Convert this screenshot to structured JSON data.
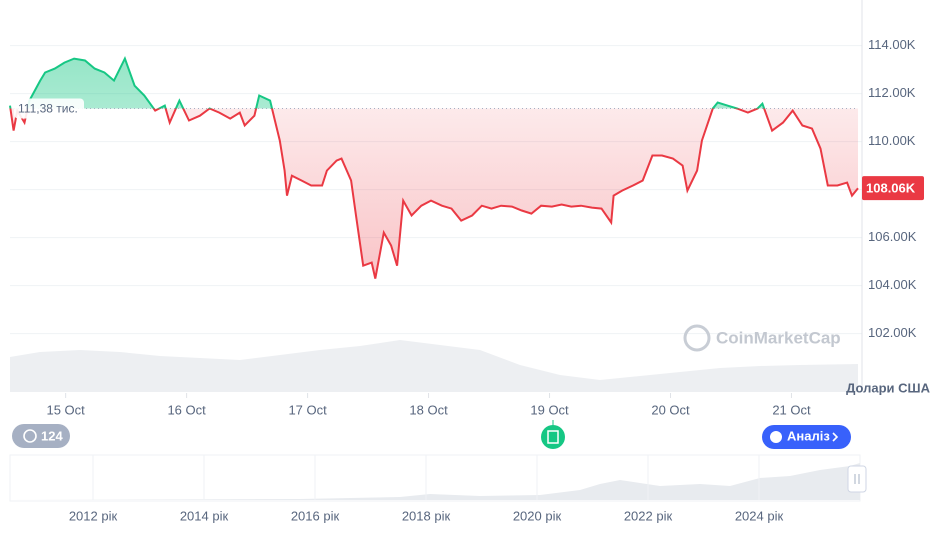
{
  "chart_data": {
    "type": "line",
    "x": [
      14.54,
      14.57,
      14.6,
      14.66,
      14.7,
      14.79,
      14.83,
      14.91,
      14.99,
      15.07,
      15.16,
      15.24,
      15.32,
      15.4,
      15.49,
      15.57,
      15.65,
      15.74,
      15.82,
      15.86,
      15.94,
      16.02,
      16.11,
      16.19,
      16.27,
      16.36,
      16.44,
      16.48,
      16.56,
      16.6,
      16.69,
      16.73,
      16.77,
      16.81,
      16.83,
      16.87,
      16.95,
      17.03,
      17.12,
      17.16,
      17.24,
      17.28,
      17.36,
      17.4,
      17.46,
      17.53,
      17.56,
      17.63,
      17.69,
      17.74,
      17.79,
      17.86,
      17.94,
      18.02,
      18.11,
      18.19,
      18.27,
      18.36,
      18.44,
      18.52,
      18.6,
      18.69,
      18.77,
      18.85,
      18.93,
      19.02,
      19.1,
      19.18,
      19.26,
      19.35,
      19.43,
      19.51,
      19.53,
      19.6,
      19.69,
      19.77,
      19.85,
      19.93,
      20.02,
      20.1,
      20.14,
      20.22,
      20.26,
      20.35,
      20.39,
      20.47,
      20.55,
      20.64,
      20.72,
      20.76,
      20.84,
      20.93,
      21.01,
      21.09,
      21.17,
      21.24,
      21.3,
      21.38,
      21.46,
      21.5,
      21.55
    ],
    "values": [
      111.5,
      110.46,
      111.29,
      110.79,
      111.71,
      112.54,
      112.88,
      113.04,
      113.29,
      113.46,
      113.38,
      113.04,
      112.88,
      112.54,
      113.46,
      112.33,
      111.92,
      111.29,
      111.5,
      110.79,
      111.71,
      110.88,
      111.08,
      111.38,
      111.21,
      110.96,
      111.21,
      110.67,
      111.08,
      111.92,
      111.71,
      110.88,
      110.04,
      108.79,
      107.75,
      108.58,
      108.38,
      108.17,
      108.17,
      108.79,
      109.21,
      109.29,
      108.38,
      106.92,
      104.83,
      104.96,
      104.29,
      106.21,
      105.67,
      104.83,
      107.54,
      106.92,
      107.33,
      107.54,
      107.33,
      107.21,
      106.71,
      106.92,
      107.33,
      107.21,
      107.33,
      107.29,
      107.13,
      107.0,
      107.33,
      107.29,
      107.38,
      107.29,
      107.33,
      107.25,
      107.21,
      106.63,
      107.75,
      107.96,
      108.17,
      108.38,
      109.42,
      109.42,
      109.29,
      109.0,
      107.96,
      108.79,
      110.04,
      111.38,
      111.63,
      111.5,
      111.38,
      111.21,
      111.38,
      111.58,
      110.46,
      110.79,
      111.29,
      110.67,
      110.54,
      109.71,
      108.17,
      108.17,
      108.29,
      107.75,
      108.06
    ],
    "up_color": "#16c784",
    "down_color": "#ea3943",
    "reference": {
      "value": 111.38,
      "label": "111,38 тис."
    },
    "current_label": "108.06K",
    "xlim": [
      14.54,
      21.55
    ],
    "xticks": [
      {
        "value": 15,
        "label": "15 Oct"
      },
      {
        "value": 16,
        "label": "16 Oct"
      },
      {
        "value": 17,
        "label": "17 Oct"
      },
      {
        "value": 18,
        "label": "18 Oct"
      },
      {
        "value": 19,
        "label": "19 Oct"
      },
      {
        "value": 20,
        "label": "20 Oct"
      },
      {
        "value": 21,
        "label": "21 Oct"
      }
    ],
    "ylim": [
      99.5,
      115.9
    ],
    "yticks": [
      {
        "value": 102,
        "label": "102.00K"
      },
      {
        "value": 104,
        "label": "104.00K"
      },
      {
        "value": 106,
        "label": "106.00K"
      },
      {
        "value": 108,
        "label": "108.00K"
      },
      {
        "value": 110,
        "label": "110.00K"
      },
      {
        "value": 112,
        "label": "112.00K"
      },
      {
        "value": 114,
        "label": "114.00K"
      }
    ],
    "grid": true,
    "currency": "Долари США",
    "watermark": "CoinMarketCap",
    "events_count": "124",
    "analysis_button": "Аналіз",
    "navigator_years": [
      "2012 рік",
      "2014 рік",
      "2016 рік",
      "2018 рік",
      "2020 рік",
      "2022 рік",
      "2024 рік"
    ]
  }
}
